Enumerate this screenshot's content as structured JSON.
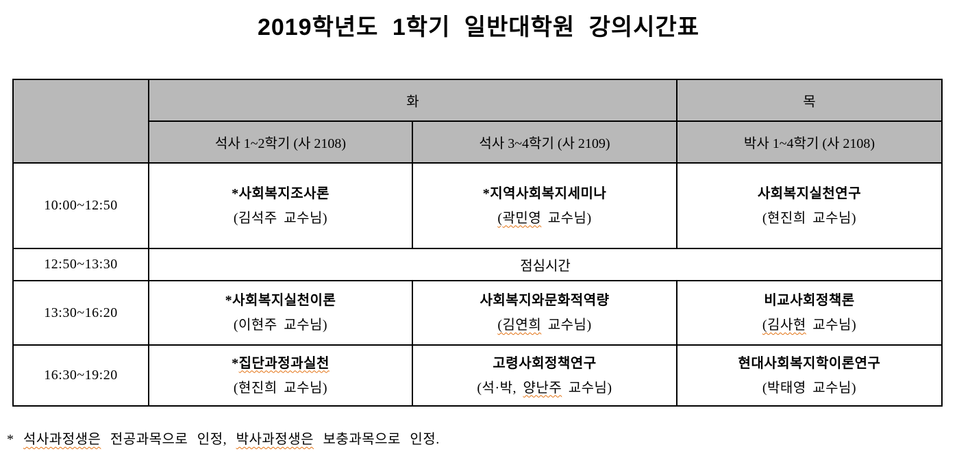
{
  "title": "2019학년도  1학기  일반대학원  강의시간표",
  "colors": {
    "header_bg": "#b9b9b9",
    "border": "#000000",
    "spellcheck_squiggle": "#e3700f"
  },
  "timetable": {
    "day_headers": [
      {
        "label": "화"
      },
      {
        "label": "목"
      }
    ],
    "section_headers": [
      {
        "label": "석사 1~2학기 (사 2108)"
      },
      {
        "label": "석사 3~4학기 (사 2109)"
      },
      {
        "label": "박사 1~4학기 (사 2108)"
      }
    ],
    "rows": [
      {
        "time": "10:00~12:50",
        "type": "classes",
        "cells": [
          {
            "course": [
              {
                "t": "*사회복지조사론"
              }
            ],
            "professor": [
              {
                "t": "(김석주 교수님)"
              }
            ]
          },
          {
            "course": [
              {
                "t": "*지역사회복지세미나"
              }
            ],
            "professor": [
              {
                "t": "(곽민영",
                "m": true
              },
              {
                "t": " 교수님)"
              }
            ]
          },
          {
            "course": [
              {
                "t": "사회복지실천연구"
              }
            ],
            "professor": [
              {
                "t": "(현진희 교수님)"
              }
            ]
          }
        ]
      },
      {
        "time": "12:50~13:30",
        "type": "lunch",
        "label": "점심시간"
      },
      {
        "time": "13:30~16:20",
        "type": "classes",
        "cells": [
          {
            "course": [
              {
                "t": "*사회복지실천이론"
              }
            ],
            "professor": [
              {
                "t": "(이현주 교수님)"
              }
            ]
          },
          {
            "course": [
              {
                "t": "사회복지와문화적역량"
              }
            ],
            "professor": [
              {
                "t": "(김연희",
                "m": true
              },
              {
                "t": " 교수님)"
              }
            ]
          },
          {
            "course": [
              {
                "t": "비교사회정책론"
              }
            ],
            "professor": [
              {
                "t": "(김사현",
                "m": true
              },
              {
                "t": " 교수님)"
              }
            ]
          }
        ]
      },
      {
        "time": "16:30~19:20",
        "type": "classes",
        "cells": [
          {
            "course": [
              {
                "t": "*"
              },
              {
                "t": "집단과정과실천",
                "m": true
              }
            ],
            "professor": [
              {
                "t": "(현진희 교수님)"
              }
            ]
          },
          {
            "course": [
              {
                "t": "고령사회정책연구"
              }
            ],
            "professor": [
              {
                "t": "(석·박, "
              },
              {
                "t": "양난주",
                "m": true
              },
              {
                "t": " 교수님)"
              }
            ]
          },
          {
            "course": [
              {
                "t": "현대사회복지학이론연구"
              }
            ],
            "professor": [
              {
                "t": "(박태영 교수님)"
              }
            ]
          }
        ]
      }
    ]
  },
  "footnote": [
    {
      "t": "* "
    },
    {
      "t": "석사과정생은",
      "m": true
    },
    {
      "t": " 전공과목으로 인정, "
    },
    {
      "t": "박사과정생은",
      "m": true
    },
    {
      "t": " 보충과목으로 인정."
    }
  ]
}
